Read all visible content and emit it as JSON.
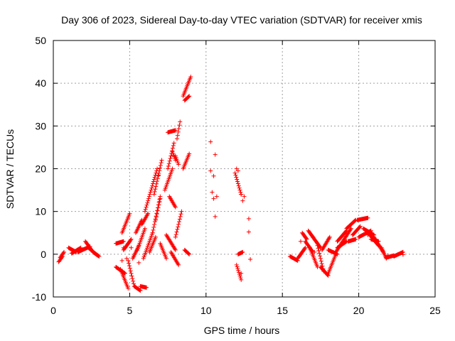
{
  "chart_data": {
    "type": "scatter",
    "title": "Day 306 of 2023, Sidereal Day-to-day VTEC variation (SDTVAR) for receiver xmis",
    "xlabel": "GPS time / hours",
    "ylabel": "SDTVAR / TECUs",
    "xlim": [
      0,
      25
    ],
    "ylim": [
      -10,
      50
    ],
    "xticks": [
      "0",
      "5",
      "10",
      "15",
      "20",
      "25"
    ],
    "yticks": [
      "-10",
      "0",
      "10",
      "20",
      "30",
      "40",
      "50"
    ],
    "grid": true,
    "marker": "+",
    "color": "#ff0000",
    "segments": [
      {
        "t0": 0.35,
        "t1": 0.6,
        "v0": -1.8,
        "v1": -0.5
      },
      {
        "t0": 0.45,
        "t1": 0.7,
        "v0": -0.8,
        "v1": 0.5
      },
      {
        "t0": 1.0,
        "t1": 1.5,
        "v0": 1.5,
        "v1": 0.5
      },
      {
        "t0": 1.2,
        "t1": 1.8,
        "v0": 0.2,
        "v1": 1.5
      },
      {
        "t0": 1.6,
        "t1": 2.4,
        "v0": 0.5,
        "v1": 1.8
      },
      {
        "t0": 2.1,
        "t1": 2.5,
        "v0": 3.0,
        "v1": 1.0
      },
      {
        "t0": 2.3,
        "t1": 2.9,
        "v0": 1.5,
        "v1": -0.3
      },
      {
        "t0": 2.6,
        "t1": 3.0,
        "v0": 0.5,
        "v1": -0.5
      },
      {
        "t0": 4.1,
        "t1": 4.6,
        "v0": 2.5,
        "v1": 3.0
      },
      {
        "t0": 4.1,
        "t1": 4.7,
        "v0": -3.0,
        "v1": -4.5
      },
      {
        "t0": 4.4,
        "t1": 4.9,
        "v0": -3.5,
        "v1": -8.0
      },
      {
        "t0": 4.5,
        "t1": 5.0,
        "v0": 5.0,
        "v1": 9.5
      },
      {
        "t0": 4.6,
        "t1": 5.1,
        "v0": 1.0,
        "v1": 3.5
      },
      {
        "t0": 4.9,
        "t1": 5.3,
        "v0": -1.5,
        "v1": -7.5
      },
      {
        "t0": 5.2,
        "t1": 5.6,
        "v0": -1.0,
        "v1": 2.0
      },
      {
        "t0": 5.3,
        "t1": 5.7,
        "v0": -7.5,
        "v1": -8.5
      },
      {
        "t0": 5.4,
        "t1": 5.8,
        "v0": 5.0,
        "v1": 8.0
      },
      {
        "t0": 5.5,
        "t1": 6.0,
        "v0": 1.0,
        "v1": 6.0
      },
      {
        "t0": 5.7,
        "t1": 6.1,
        "v0": -7.5,
        "v1": -7.8
      },
      {
        "t0": 5.8,
        "t1": 6.2,
        "v0": 7.0,
        "v1": 9.5
      },
      {
        "t0": 5.9,
        "t1": 6.5,
        "v0": -1.0,
        "v1": 5.0
      },
      {
        "t0": 6.0,
        "t1": 6.8,
        "v0": 10.0,
        "v1": 20.0
      },
      {
        "t0": 6.3,
        "t1": 6.7,
        "v0": 0.5,
        "v1": 4.0
      },
      {
        "t0": 6.5,
        "t1": 7.0,
        "v0": 5.0,
        "v1": 13.5
      },
      {
        "t0": 6.6,
        "t1": 7.1,
        "v0": 14.0,
        "v1": 22.0
      },
      {
        "t0": 6.7,
        "t1": 7.0,
        "v0": 8.0,
        "v1": 13.0
      },
      {
        "t0": 7.0,
        "t1": 7.4,
        "v0": 2.5,
        "v1": -1.0
      },
      {
        "t0": 7.3,
        "t1": 7.8,
        "v0": 15.0,
        "v1": 20.0
      },
      {
        "t0": 7.4,
        "t1": 8.0,
        "v0": 4.5,
        "v1": 1.0
      },
      {
        "t0": 7.5,
        "t1": 7.9,
        "v0": 20.0,
        "v1": 26.0
      },
      {
        "t0": 7.5,
        "t1": 8.0,
        "v0": 28.5,
        "v1": 29.0
      },
      {
        "t0": 7.6,
        "t1": 8.0,
        "v0": 13.5,
        "v1": 11.0
      },
      {
        "t0": 7.7,
        "t1": 8.2,
        "v0": 0.5,
        "v1": -2.5
      },
      {
        "t0": 7.8,
        "t1": 8.0,
        "v0": 24.0,
        "v1": 22.0
      },
      {
        "t0": 8.0,
        "t1": 8.4,
        "v0": 4.0,
        "v1": 10.0
      },
      {
        "t0": 8.0,
        "t1": 8.2,
        "v0": 23.0,
        "v1": 21.0
      },
      {
        "t0": 8.1,
        "t1": 8.3,
        "v0": 27.0,
        "v1": 31.0
      },
      {
        "t0": 8.5,
        "t1": 9.0,
        "v0": 37.0,
        "v1": 41.5
      },
      {
        "t0": 8.5,
        "t1": 8.9,
        "v0": 20.0,
        "v1": 23.5
      },
      {
        "t0": 8.6,
        "t1": 8.9,
        "v0": 36.0,
        "v1": 37.0
      },
      {
        "t0": 8.6,
        "t1": 8.9,
        "v0": 1.0,
        "v1": 0.0
      },
      {
        "t0": 11.9,
        "t1": 12.3,
        "v0": 19.0,
        "v1": 14.0
      },
      {
        "t0": 12.0,
        "t1": 12.3,
        "v0": -2.5,
        "v1": -6.0
      },
      {
        "t0": 12.1,
        "t1": 12.4,
        "v0": 0.0,
        "v1": 0.5
      },
      {
        "t0": 15.5,
        "t1": 16.0,
        "v0": -0.5,
        "v1": -1.5
      },
      {
        "t0": 16.0,
        "t1": 16.5,
        "v0": -1.0,
        "v1": 1.5
      },
      {
        "t0": 16.3,
        "t1": 16.6,
        "v0": 5.0,
        "v1": 3.5
      },
      {
        "t0": 16.5,
        "t1": 17.0,
        "v0": 3.0,
        "v1": 0.5
      },
      {
        "t0": 16.7,
        "t1": 17.0,
        "v0": 5.5,
        "v1": 4.0
      },
      {
        "t0": 16.8,
        "t1": 17.3,
        "v0": 1.5,
        "v1": -3.0
      },
      {
        "t0": 17.0,
        "t1": 17.5,
        "v0": 4.0,
        "v1": 1.5
      },
      {
        "t0": 17.3,
        "t1": 17.7,
        "v0": 2.0,
        "v1": -4.0
      },
      {
        "t0": 17.5,
        "t1": 18.0,
        "v0": -3.0,
        "v1": -5.0
      },
      {
        "t0": 17.6,
        "t1": 18.1,
        "v0": 1.0,
        "v1": 4.0
      },
      {
        "t0": 18.0,
        "t1": 18.5,
        "v0": -4.5,
        "v1": 0.0
      },
      {
        "t0": 18.0,
        "t1": 18.6,
        "v0": 1.0,
        "v1": 0.0
      },
      {
        "t0": 18.5,
        "t1": 19.5,
        "v0": 0.5,
        "v1": 6.0
      },
      {
        "t0": 18.6,
        "t1": 19.2,
        "v0": 1.5,
        "v1": 3.0
      },
      {
        "t0": 18.6,
        "t1": 19.2,
        "v0": 3.0,
        "v1": 5.5
      },
      {
        "t0": 19.2,
        "t1": 19.8,
        "v0": 6.0,
        "v1": 8.0
      },
      {
        "t0": 19.3,
        "t1": 19.8,
        "v0": 3.0,
        "v1": 3.5
      },
      {
        "t0": 19.6,
        "t1": 20.1,
        "v0": 4.5,
        "v1": 6.5
      },
      {
        "t0": 19.9,
        "t1": 20.6,
        "v0": 8.0,
        "v1": 8.5
      },
      {
        "t0": 20.0,
        "t1": 20.8,
        "v0": 4.0,
        "v1": 5.5
      },
      {
        "t0": 20.3,
        "t1": 21.0,
        "v0": 6.0,
        "v1": 4.5
      },
      {
        "t0": 20.5,
        "t1": 21.3,
        "v0": 5.5,
        "v1": 2.0
      },
      {
        "t0": 20.8,
        "t1": 21.3,
        "v0": 3.5,
        "v1": 3.0
      },
      {
        "t0": 21.0,
        "t1": 21.6,
        "v0": 4.0,
        "v1": 0.5
      },
      {
        "t0": 21.5,
        "t1": 21.8,
        "v0": 1.5,
        "v1": -1.0
      },
      {
        "t0": 21.8,
        "t1": 22.3,
        "v0": -0.8,
        "v1": -0.3
      },
      {
        "t0": 22.3,
        "t1": 22.9,
        "v0": -0.5,
        "v1": 0.5
      }
    ],
    "points": [
      [
        4.5,
        -1.5
      ],
      [
        4.6,
        1.5
      ],
      [
        4.8,
        -1.0
      ],
      [
        5.1,
        1.5
      ],
      [
        5.6,
        -2.0
      ],
      [
        6.9,
        18.5
      ],
      [
        10.3,
        26.3
      ],
      [
        10.3,
        19.5
      ],
      [
        10.4,
        14.5
      ],
      [
        10.5,
        13.0
      ],
      [
        10.5,
        18.3
      ],
      [
        10.6,
        23.3
      ],
      [
        10.6,
        8.8
      ],
      [
        10.7,
        13.5
      ],
      [
        12.0,
        20.0
      ],
      [
        12.1,
        19.5
      ],
      [
        12.3,
        14.0
      ],
      [
        12.4,
        12.5
      ],
      [
        12.5,
        13.5
      ],
      [
        12.8,
        8.3
      ],
      [
        12.8,
        5.2
      ],
      [
        12.9,
        -1.2
      ],
      [
        12.3,
        -4.5
      ],
      [
        16.2,
        3.0
      ],
      [
        17.1,
        0.5
      ],
      [
        20.6,
        4.5
      ],
      [
        21.9,
        -0.3
      ],
      [
        22.9,
        -0.1
      ]
    ]
  }
}
